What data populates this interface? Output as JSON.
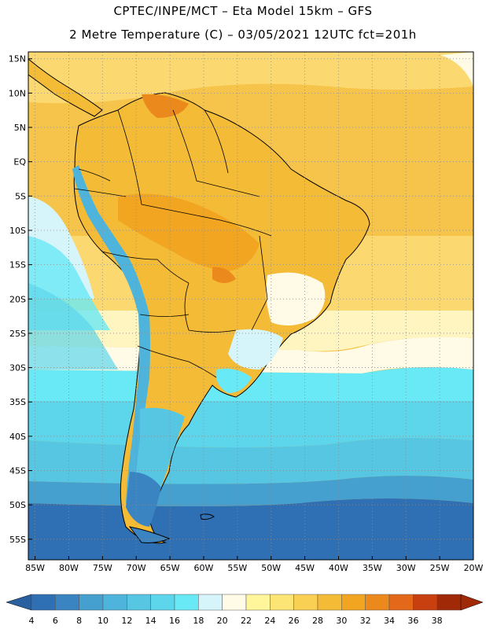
{
  "header": {
    "line1": "CPTEC/INPE/MCT –   Eta Model 15km – GFS",
    "line2": "2 Metre Temperature (C) – 03/05/2021 12UTC fct=201h"
  },
  "map": {
    "lon_labels": [
      "85W",
      "80W",
      "75W",
      "70W",
      "65W",
      "60W",
      "55W",
      "50W",
      "45W",
      "40W",
      "35W",
      "30W",
      "25W",
      "20W"
    ],
    "lat_labels": [
      "15N",
      "10N",
      "5N",
      "EQ",
      "5S",
      "10S",
      "15S",
      "20S",
      "25S",
      "30S",
      "35S",
      "40S",
      "45S",
      "50S",
      "55S"
    ],
    "lon_range": [
      -86,
      -20
    ],
    "lat_range": [
      -58,
      16
    ]
  },
  "colorbar": {
    "labels": [
      "4",
      "6",
      "8",
      "10",
      "12",
      "14",
      "16",
      "18",
      "20",
      "22",
      "24",
      "26",
      "28",
      "30",
      "32",
      "34",
      "36",
      "38"
    ],
    "colors": [
      "#2f6fb3",
      "#3b84c2",
      "#45a0cf",
      "#4fb4db",
      "#56c6e3",
      "#5dd6eb",
      "#69e9f5",
      "#d6f5fb",
      "#fffbe6",
      "#fff59a",
      "#fde575",
      "#f9d053",
      "#f4bb37",
      "#f1a521",
      "#ec891d",
      "#e4681a",
      "#c84010",
      "#a02a08"
    ]
  },
  "chart_data": {
    "type": "heatmap",
    "title": "2 Metre Temperature (C) – 03/05/2021 12UTC fct=201h",
    "variable_unit": "C",
    "xlim": [
      -86,
      -20
    ],
    "ylim": [
      -58,
      16
    ],
    "colorbar_min": 4,
    "colorbar_max": 38,
    "colorbar_step": 2
  }
}
